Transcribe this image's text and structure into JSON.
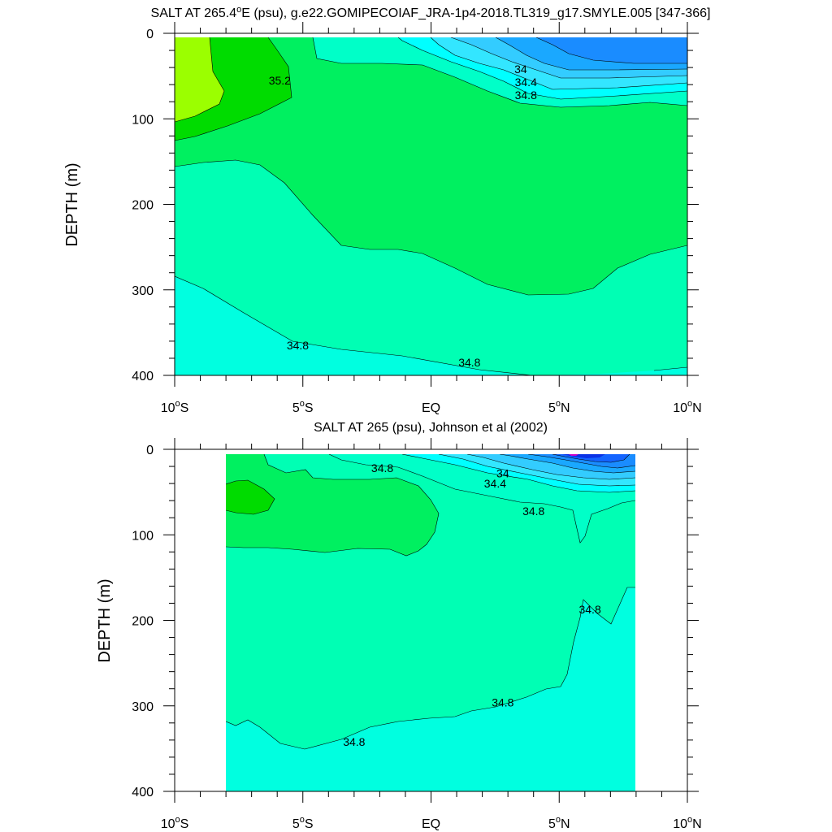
{
  "chart_data": [
    {
      "type": "contour",
      "title": "SALT AT 265.4ºE (psu), g.e22.GOMIPECOIAF_JRA-1p4-2018.TL319_g17.SMYLE.005 [347-366]",
      "title_prefix": "SALT AT 265.4",
      "title_degree": "o",
      "title_suffix": "E (psu), g.e22.GOMIPECOIAF_JRA-1p4-2018.TL319_g17.SMYLE.005 [347-366]",
      "xlabel": "",
      "ylabel": "DEPTH (m)",
      "xlim": [
        -10,
        10
      ],
      "ylim": [
        0,
        400
      ],
      "x_ticks": [
        {
          "value": -10,
          "num": "10",
          "hemi": "S"
        },
        {
          "value": -5,
          "num": "5",
          "hemi": "S"
        },
        {
          "value": 0,
          "num": "EQ",
          "hemi": ""
        },
        {
          "value": 5,
          "num": "5",
          "hemi": "N"
        },
        {
          "value": 10,
          "num": "10",
          "hemi": "N"
        }
      ],
      "y_ticks": [
        0,
        100,
        200,
        300,
        400
      ],
      "data_x_range": [
        -10,
        10
      ],
      "data_y_range": [
        5,
        400
      ],
      "contour_labels": [
        {
          "text": "35.2",
          "x": -5.9,
          "y": 55
        },
        {
          "text": "34",
          "x": 3.5,
          "y": 42
        },
        {
          "text": "34.4",
          "x": 3.7,
          "y": 57
        },
        {
          "text": "34.8",
          "x": 3.7,
          "y": 72
        },
        {
          "text": "34.8",
          "x": -5.2,
          "y": 365
        },
        {
          "text": "34.8",
          "x": 1.5,
          "y": 385
        }
      ]
    },
    {
      "type": "contour",
      "title": "SALT AT 265 (psu), Johnson et al (2002)",
      "xlabel": "",
      "ylabel": "DEPTH (m)",
      "xlim": [
        -10,
        10
      ],
      "ylim": [
        0,
        400
      ],
      "x_ticks": [
        {
          "value": -10,
          "num": "10",
          "hemi": "S"
        },
        {
          "value": -5,
          "num": "5",
          "hemi": "S"
        },
        {
          "value": 0,
          "num": "EQ",
          "hemi": ""
        },
        {
          "value": 5,
          "num": "5",
          "hemi": "N"
        },
        {
          "value": 10,
          "num": "10",
          "hemi": "N"
        }
      ],
      "y_ticks": [
        0,
        100,
        200,
        300,
        400
      ],
      "data_x_range": [
        -8,
        8
      ],
      "data_y_range": [
        5,
        400
      ],
      "contour_labels": [
        {
          "text": "34.8",
          "x": -1.9,
          "y": 22
        },
        {
          "text": "34",
          "x": 2.8,
          "y": 28
        },
        {
          "text": "34.4",
          "x": 2.5,
          "y": 40
        },
        {
          "text": "34.8",
          "x": 4.0,
          "y": 72
        },
        {
          "text": "34.8",
          "x": 6.2,
          "y": 187
        },
        {
          "text": "34.8",
          "x": 2.8,
          "y": 296
        },
        {
          "text": "34.8",
          "x": -3.0,
          "y": 342
        }
      ]
    }
  ]
}
